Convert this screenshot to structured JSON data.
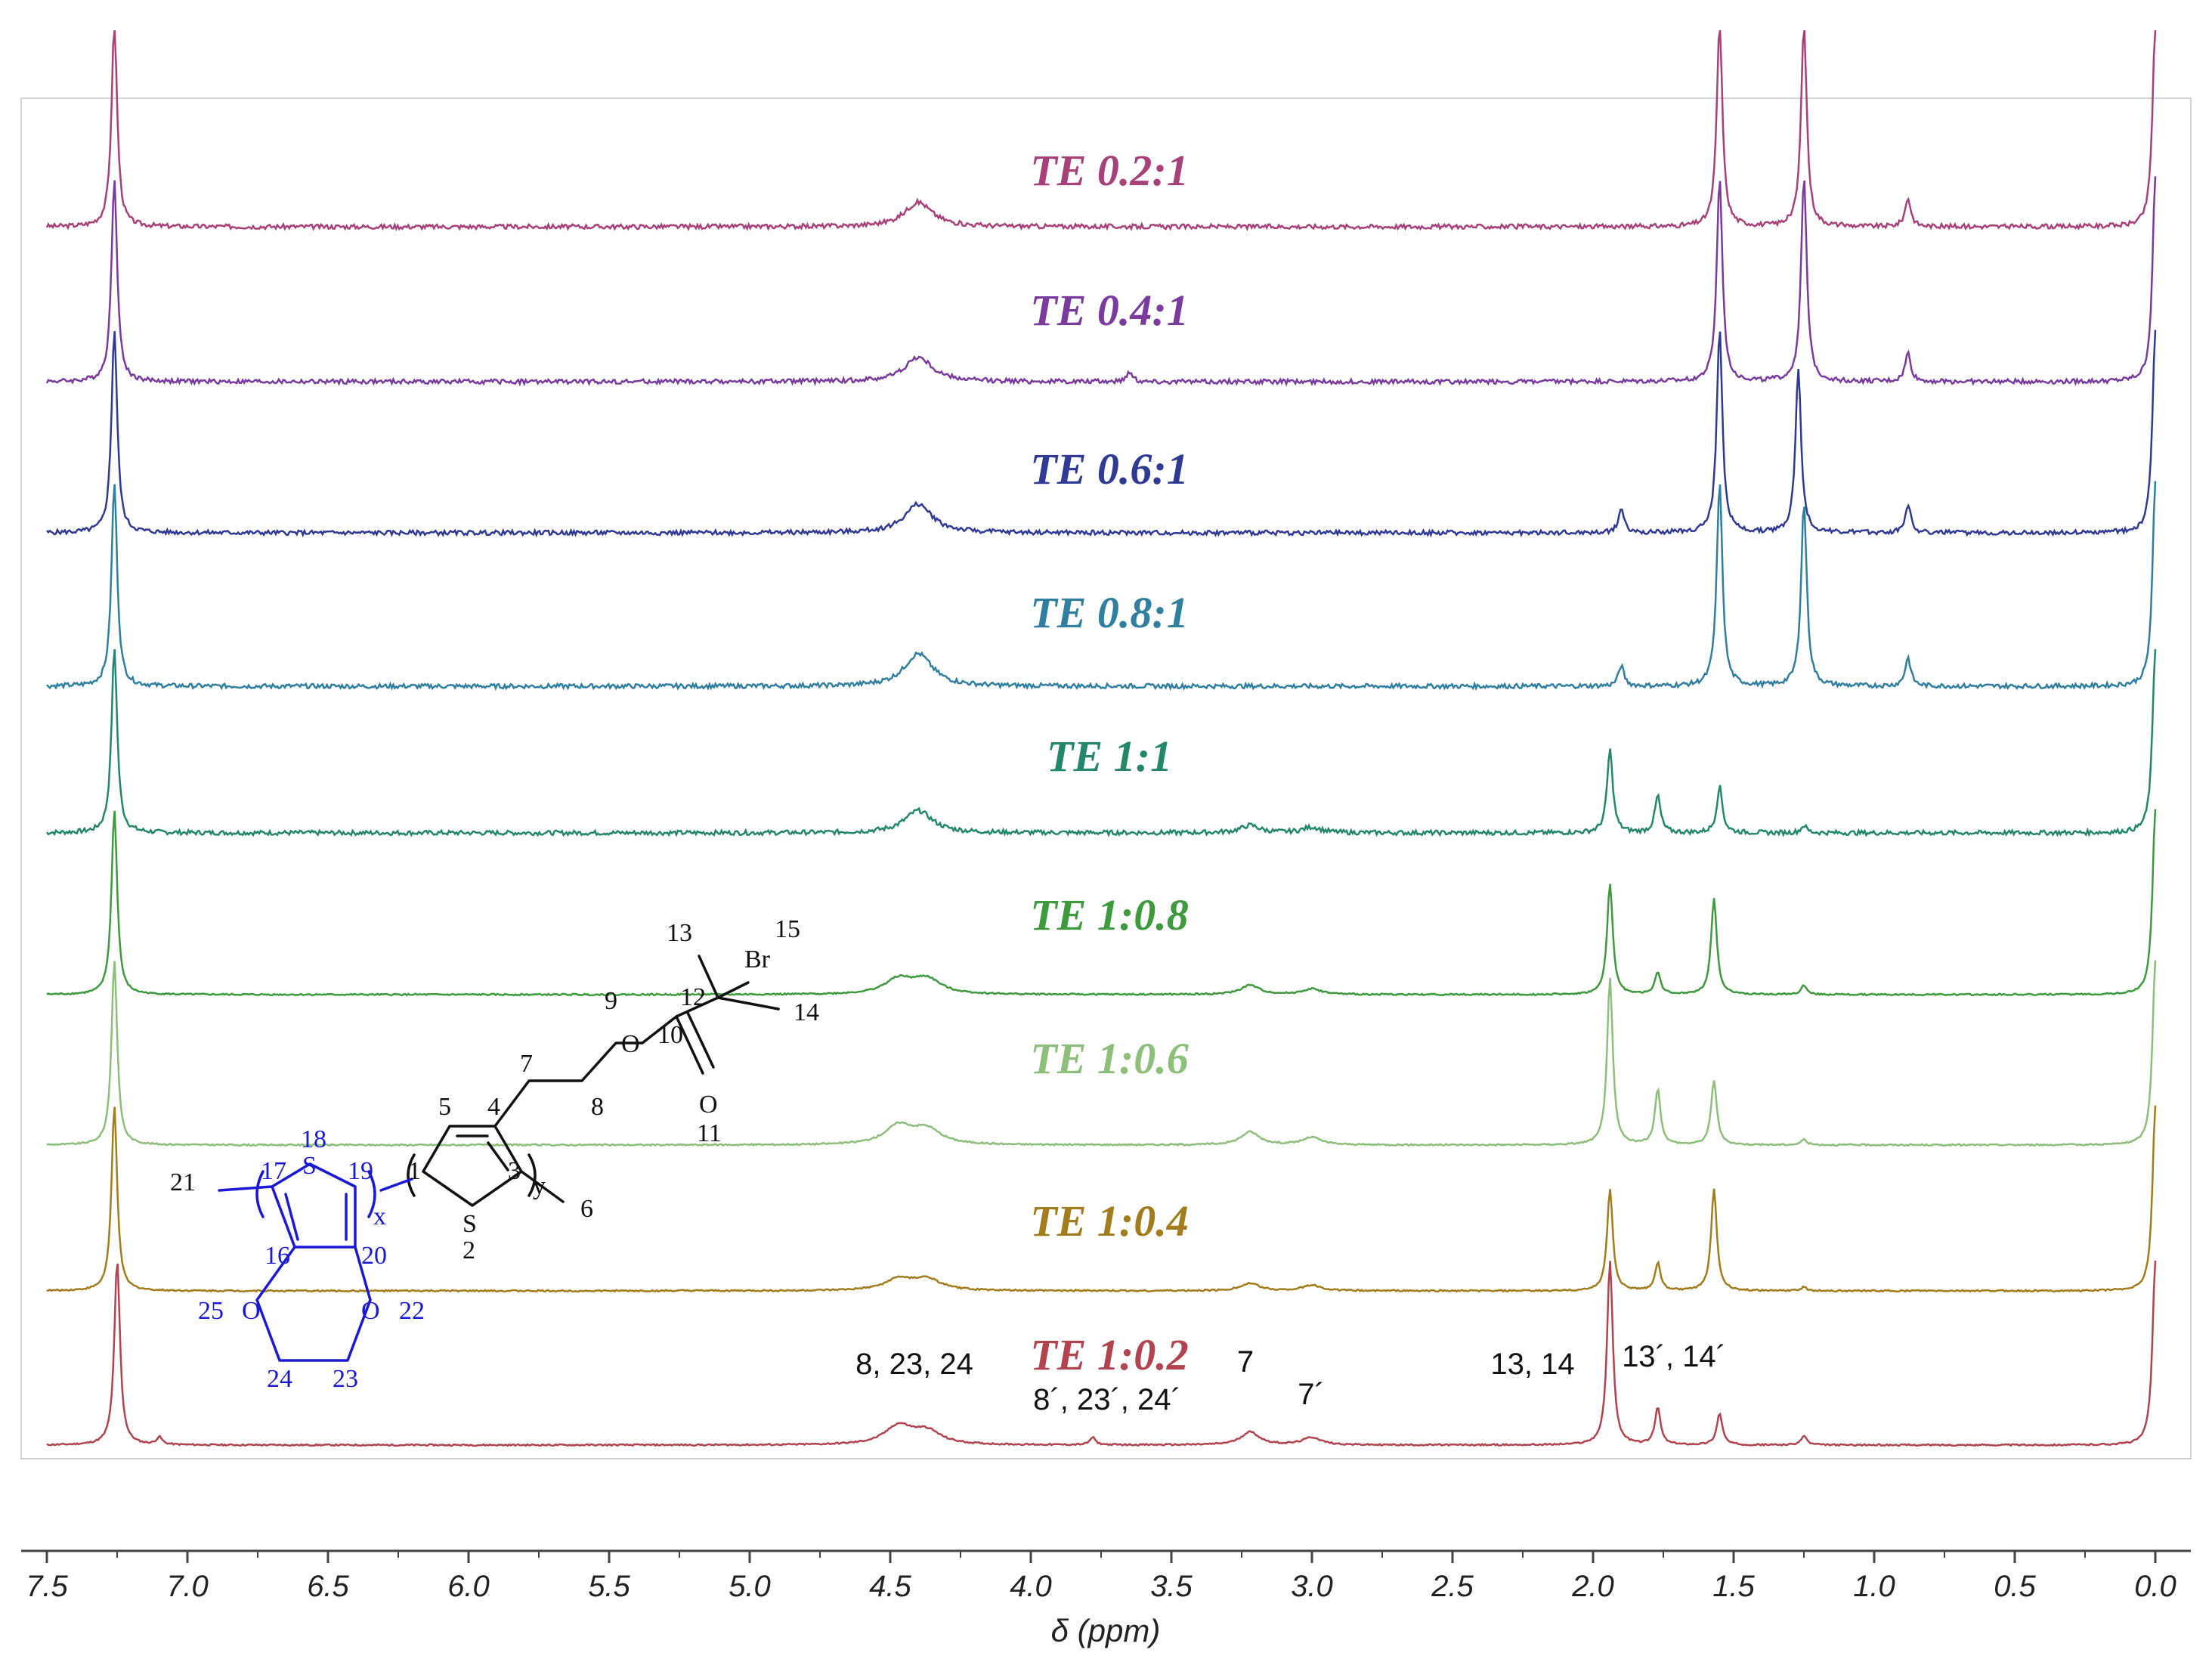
{
  "chart_data": {
    "type": "line",
    "title": "",
    "xlabel": "δ (ppm)",
    "ylabel": "",
    "xlim": [
      7.5,
      0.0
    ],
    "x_ticks": [
      "7.5",
      "7.0",
      "6.5",
      "6.0",
      "5.5",
      "5.0",
      "4.5",
      "4.0",
      "3.5",
      "3.0",
      "2.5",
      "2.0",
      "1.5",
      "1.0",
      "0.5",
      "0.0"
    ],
    "series": [
      {
        "name": "TE 0.2:1",
        "color": "#a8407a",
        "peaks": [
          {
            "ppm": 7.26,
            "rel": 1.0
          },
          {
            "ppm": 4.4,
            "rel": 0.12
          },
          {
            "ppm": 1.55,
            "rel": 1.0
          },
          {
            "ppm": 1.25,
            "rel": 1.0
          },
          {
            "ppm": 0.88,
            "rel": 0.14
          },
          {
            "ppm": 0.0,
            "rel": 1.0
          }
        ]
      },
      {
        "name": "TE 0.4:1",
        "color": "#7a3a9e",
        "peaks": [
          {
            "ppm": 7.26,
            "rel": 1.0
          },
          {
            "ppm": 4.4,
            "rel": 0.12
          },
          {
            "ppm": 3.65,
            "rel": 0.05
          },
          {
            "ppm": 1.55,
            "rel": 1.0
          },
          {
            "ppm": 1.25,
            "rel": 1.0
          },
          {
            "ppm": 0.88,
            "rel": 0.14
          },
          {
            "ppm": 0.0,
            "rel": 1.0
          }
        ]
      },
      {
        "name": "TE 0.6:1",
        "color": "#2e3a94",
        "peaks": [
          {
            "ppm": 7.26,
            "rel": 1.0
          },
          {
            "ppm": 4.4,
            "rel": 0.14
          },
          {
            "ppm": 1.9,
            "rel": 0.12
          },
          {
            "ppm": 1.55,
            "rel": 1.0
          },
          {
            "ppm": 1.27,
            "rel": 0.8
          },
          {
            "ppm": 0.88,
            "rel": 0.14
          },
          {
            "ppm": 0.0,
            "rel": 1.0
          }
        ]
      },
      {
        "name": "TE 0.8:1",
        "color": "#2f7fa0",
        "peaks": [
          {
            "ppm": 7.26,
            "rel": 1.0
          },
          {
            "ppm": 4.4,
            "rel": 0.16
          },
          {
            "ppm": 1.9,
            "rel": 0.1
          },
          {
            "ppm": 1.55,
            "rel": 1.0
          },
          {
            "ppm": 1.25,
            "rel": 0.9
          },
          {
            "ppm": 0.88,
            "rel": 0.14
          },
          {
            "ppm": 0.0,
            "rel": 1.0
          }
        ]
      },
      {
        "name": "TE 1:1",
        "color": "#23876a",
        "peaks": [
          {
            "ppm": 7.26,
            "rel": 1.0
          },
          {
            "ppm": 4.4,
            "rel": 0.12
          },
          {
            "ppm": 3.22,
            "rel": 0.04
          },
          {
            "ppm": 3.0,
            "rel": 0.03
          },
          {
            "ppm": 1.94,
            "rel": 0.45
          },
          {
            "ppm": 1.77,
            "rel": 0.2
          },
          {
            "ppm": 1.55,
            "rel": 0.25
          },
          {
            "ppm": 1.25,
            "rel": 0.04
          },
          {
            "ppm": 0.0,
            "rel": 1.0
          }
        ]
      },
      {
        "name": "TE 1:0.8",
        "color": "#3d9a3d",
        "peaks": [
          {
            "ppm": 7.26,
            "rel": 1.0
          },
          {
            "ppm": 4.47,
            "rel": 0.08
          },
          {
            "ppm": 4.37,
            "rel": 0.08
          },
          {
            "ppm": 3.22,
            "rel": 0.05
          },
          {
            "ppm": 3.0,
            "rel": 0.03
          },
          {
            "ppm": 1.94,
            "rel": 0.6
          },
          {
            "ppm": 1.77,
            "rel": 0.12
          },
          {
            "ppm": 1.57,
            "rel": 0.52
          },
          {
            "ppm": 1.25,
            "rel": 0.05
          },
          {
            "ppm": 0.0,
            "rel": 1.0
          }
        ]
      },
      {
        "name": "TE 1:0.6",
        "color": "#8cc07a",
        "peaks": [
          {
            "ppm": 7.26,
            "rel": 1.0
          },
          {
            "ppm": 4.47,
            "rel": 0.1
          },
          {
            "ppm": 4.37,
            "rel": 0.08
          },
          {
            "ppm": 3.22,
            "rel": 0.07
          },
          {
            "ppm": 3.0,
            "rel": 0.04
          },
          {
            "ppm": 1.94,
            "rel": 0.9
          },
          {
            "ppm": 1.77,
            "rel": 0.3
          },
          {
            "ppm": 1.57,
            "rel": 0.35
          },
          {
            "ppm": 1.25,
            "rel": 0.03
          },
          {
            "ppm": 0.0,
            "rel": 1.0
          }
        ]
      },
      {
        "name": "TE 1:0.4",
        "color": "#a37c1c",
        "peaks": [
          {
            "ppm": 7.26,
            "rel": 1.0
          },
          {
            "ppm": 4.47,
            "rel": 0.06
          },
          {
            "ppm": 4.37,
            "rel": 0.06
          },
          {
            "ppm": 3.22,
            "rel": 0.04
          },
          {
            "ppm": 3.0,
            "rel": 0.03
          },
          {
            "ppm": 1.94,
            "rel": 0.55
          },
          {
            "ppm": 1.77,
            "rel": 0.15
          },
          {
            "ppm": 1.57,
            "rel": 0.55
          },
          {
            "ppm": 1.25,
            "rel": 0.02
          },
          {
            "ppm": 0.0,
            "rel": 1.0
          }
        ]
      },
      {
        "name": "TE 1:0.2",
        "color": "#b2434f",
        "peaks": [
          {
            "ppm": 7.25,
            "rel": 1.0
          },
          {
            "ppm": 7.1,
            "rel": 0.04
          },
          {
            "ppm": 4.47,
            "rel": 0.1
          },
          {
            "ppm": 4.37,
            "rel": 0.07
          },
          {
            "ppm": 3.78,
            "rel": 0.04
          },
          {
            "ppm": 3.22,
            "rel": 0.07
          },
          {
            "ppm": 3.0,
            "rel": 0.04
          },
          {
            "ppm": 1.94,
            "rel": 1.0
          },
          {
            "ppm": 1.77,
            "rel": 0.2
          },
          {
            "ppm": 1.55,
            "rel": 0.17
          },
          {
            "ppm": 1.25,
            "rel": 0.05
          },
          {
            "ppm": 0.0,
            "rel": 1.0
          }
        ]
      }
    ],
    "annotations": [
      {
        "text": "8, 23, 24",
        "ppm": 4.47
      },
      {
        "text": "8´, 23´, 24´",
        "ppm": 3.78
      },
      {
        "text": "7",
        "ppm": 3.22
      },
      {
        "text": "7´",
        "ppm": 3.0
      },
      {
        "text": "13, 14",
        "ppm": 2.0
      },
      {
        "text": "13´, 14´",
        "ppm": 1.77
      }
    ]
  },
  "structure": {
    "atoms_black": [
      "1",
      "2",
      "3",
      "4",
      "5",
      "6",
      "7",
      "8",
      "9",
      "10",
      "11",
      "12",
      "13",
      "14",
      "15",
      "S",
      "O",
      "O",
      "Br",
      "y"
    ],
    "atoms_blue": [
      "16",
      "17",
      "18",
      "19",
      "20",
      "21",
      "22",
      "23",
      "24",
      "25",
      "S",
      "O",
      "O",
      "x"
    ]
  }
}
